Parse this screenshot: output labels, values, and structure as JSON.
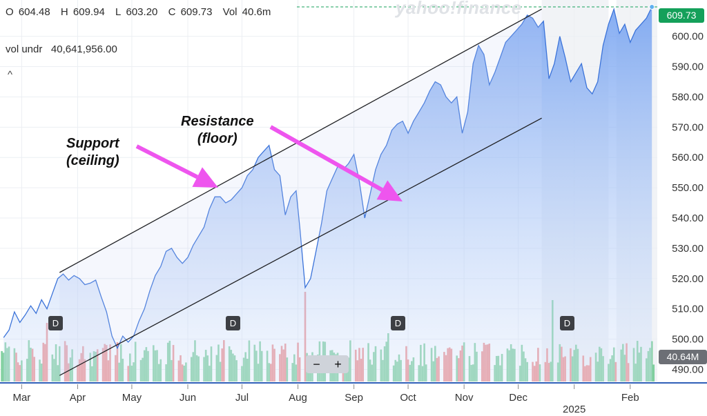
{
  "watermark": "yahoo!finance",
  "ohlc": {
    "o_label": "O",
    "o": "604.48",
    "h_label": "H",
    "h": "609.94",
    "l_label": "L",
    "l": "603.20",
    "c_label": "C",
    "c": "609.73",
    "vol_label": "Vol",
    "vol": "40.6m"
  },
  "vol_undr": {
    "label": "vol undr",
    "value": "40,641,956.00"
  },
  "collapse_glyph": "^",
  "zoom": {
    "minus": "−",
    "plus": "+"
  },
  "last_price": "609.73",
  "last_volume": "40.64M",
  "annotations": {
    "support_line1": "Support",
    "support_line2": "(ceiling)",
    "resistance_line1": "Resistance",
    "resistance_line2": "(floor)"
  },
  "dividend_marker": "D",
  "colors": {
    "line": "#3b73d9",
    "up_volume": "#7fcf9e",
    "down_volume": "#ee8f8f",
    "arrow": "#ee55ee",
    "last_badge": "#14a05a",
    "volume_badge": "#6c6f75"
  },
  "chart_data": {
    "type": "area",
    "y_ticks": [
      "600.00",
      "590.00",
      "580.00",
      "570.00",
      "560.00",
      "550.00",
      "540.00",
      "530.00",
      "520.00",
      "510.00",
      "500.00",
      "490.00"
    ],
    "ylim": [
      486,
      612
    ],
    "x_labels": [
      "Mar",
      "Apr",
      "May",
      "Jun",
      "Jul",
      "Aug",
      "Sep",
      "Oct",
      "Nov",
      "Dec",
      "2025",
      "Feb"
    ],
    "x_label_dates": [
      "2024-03-01",
      "2024-04-01",
      "2024-05-01",
      "2024-06-01",
      "2024-07-01",
      "2024-08-01",
      "2024-09-01",
      "2024-10-01",
      "2024-11-01",
      "2024-12-01",
      "2025-01-01",
      "2025-02-01"
    ],
    "price_series": [
      [
        "2024-02-20",
        500.5
      ],
      [
        "2024-02-23",
        503
      ],
      [
        "2024-02-26",
        509
      ],
      [
        "2024-02-29",
        505.5
      ],
      [
        "2024-03-03",
        508
      ],
      [
        "2024-03-06",
        511
      ],
      [
        "2024-03-09",
        508.5
      ],
      [
        "2024-03-12",
        513
      ],
      [
        "2024-03-15",
        510
      ],
      [
        "2024-03-18",
        515
      ],
      [
        "2024-03-21",
        520
      ],
      [
        "2024-03-24",
        521.5
      ],
      [
        "2024-03-27",
        519.5
      ],
      [
        "2024-03-30",
        521
      ],
      [
        "2024-04-02",
        520
      ],
      [
        "2024-04-05",
        518
      ],
      [
        "2024-04-08",
        518.5
      ],
      [
        "2024-04-11",
        519.5
      ],
      [
        "2024-04-14",
        514
      ],
      [
        "2024-04-17",
        509
      ],
      [
        "2024-04-20",
        501
      ],
      [
        "2024-04-23",
        497
      ],
      [
        "2024-04-26",
        501
      ],
      [
        "2024-04-29",
        499
      ],
      [
        "2024-05-02",
        501
      ],
      [
        "2024-05-05",
        506
      ],
      [
        "2024-05-08",
        510
      ],
      [
        "2024-05-11",
        516
      ],
      [
        "2024-05-14",
        521
      ],
      [
        "2024-05-17",
        524
      ],
      [
        "2024-05-20",
        529
      ],
      [
        "2024-05-23",
        530
      ],
      [
        "2024-05-26",
        527
      ],
      [
        "2024-05-29",
        525
      ],
      [
        "2024-06-01",
        527
      ],
      [
        "2024-06-04",
        531
      ],
      [
        "2024-06-07",
        534
      ],
      [
        "2024-06-10",
        537
      ],
      [
        "2024-06-13",
        543
      ],
      [
        "2024-06-16",
        547
      ],
      [
        "2024-06-19",
        547
      ],
      [
        "2024-06-22",
        545
      ],
      [
        "2024-06-25",
        546
      ],
      [
        "2024-06-28",
        548
      ],
      [
        "2024-07-01",
        550
      ],
      [
        "2024-07-04",
        554
      ],
      [
        "2024-07-07",
        556
      ],
      [
        "2024-07-10",
        560
      ],
      [
        "2024-07-13",
        562
      ],
      [
        "2024-07-16",
        564
      ],
      [
        "2024-07-19",
        556
      ],
      [
        "2024-07-22",
        554
      ],
      [
        "2024-07-25",
        541
      ],
      [
        "2024-07-28",
        547
      ],
      [
        "2024-07-31",
        549
      ],
      [
        "2024-08-02",
        537
      ],
      [
        "2024-08-05",
        517
      ],
      [
        "2024-08-08",
        520
      ],
      [
        "2024-08-11",
        529
      ],
      [
        "2024-08-14",
        538
      ],
      [
        "2024-08-17",
        549
      ],
      [
        "2024-08-20",
        553
      ],
      [
        "2024-08-23",
        557
      ],
      [
        "2024-08-26",
        556
      ],
      [
        "2024-08-29",
        558
      ],
      [
        "2024-09-01",
        561
      ],
      [
        "2024-09-04",
        552
      ],
      [
        "2024-09-07",
        540
      ],
      [
        "2024-09-10",
        548
      ],
      [
        "2024-09-13",
        556
      ],
      [
        "2024-09-16",
        561
      ],
      [
        "2024-09-19",
        564
      ],
      [
        "2024-09-22",
        569
      ],
      [
        "2024-09-25",
        571
      ],
      [
        "2024-09-28",
        572
      ],
      [
        "2024-10-01",
        568
      ],
      [
        "2024-10-04",
        572
      ],
      [
        "2024-10-07",
        575
      ],
      [
        "2024-10-10",
        578
      ],
      [
        "2024-10-13",
        582
      ],
      [
        "2024-10-16",
        585
      ],
      [
        "2024-10-19",
        584
      ],
      [
        "2024-10-22",
        580
      ],
      [
        "2024-10-25",
        578
      ],
      [
        "2024-10-28",
        580
      ],
      [
        "2024-10-31",
        568
      ],
      [
        "2024-11-03",
        575
      ],
      [
        "2024-11-06",
        591
      ],
      [
        "2024-11-09",
        597
      ],
      [
        "2024-11-12",
        594
      ],
      [
        "2024-11-15",
        584
      ],
      [
        "2024-11-18",
        588
      ],
      [
        "2024-11-21",
        593
      ],
      [
        "2024-11-24",
        598
      ],
      [
        "2024-11-27",
        600
      ],
      [
        "2024-11-30",
        602
      ],
      [
        "2024-12-03",
        604
      ],
      [
        "2024-12-06",
        607
      ],
      [
        "2024-12-09",
        606
      ],
      [
        "2024-12-12",
        603
      ],
      [
        "2024-12-15",
        605
      ],
      [
        "2024-12-18",
        586
      ],
      [
        "2024-12-21",
        591
      ],
      [
        "2024-12-24",
        600
      ],
      [
        "2024-12-27",
        593
      ],
      [
        "2024-12-30",
        585
      ],
      [
        "2025-01-02",
        588
      ],
      [
        "2025-01-05",
        591
      ],
      [
        "2025-01-08",
        583
      ],
      [
        "2025-01-11",
        581
      ],
      [
        "2025-01-14",
        585
      ],
      [
        "2025-01-17",
        597
      ],
      [
        "2025-01-20",
        604
      ],
      [
        "2025-01-23",
        609
      ],
      [
        "2025-01-26",
        601
      ],
      [
        "2025-01-29",
        604
      ],
      [
        "2025-02-01",
        598
      ],
      [
        "2025-02-04",
        602
      ],
      [
        "2025-02-07",
        604
      ],
      [
        "2025-02-10",
        606
      ],
      [
        "2025-02-13",
        609.73
      ]
    ],
    "last_close": 609.73,
    "dividend_dates": [
      "2024-03-15",
      "2024-06-21",
      "2024-09-20",
      "2024-12-20"
    ],
    "trendlines": {
      "ceiling": [
        [
          "2024-03-22",
          522
        ],
        [
          "2024-12-14",
          609
        ]
      ],
      "floor": [
        [
          "2024-03-22",
          488
        ],
        [
          "2024-12-14",
          573
        ]
      ]
    },
    "volume": {
      "unit": "shares (millions)",
      "last": 40.64
    }
  }
}
